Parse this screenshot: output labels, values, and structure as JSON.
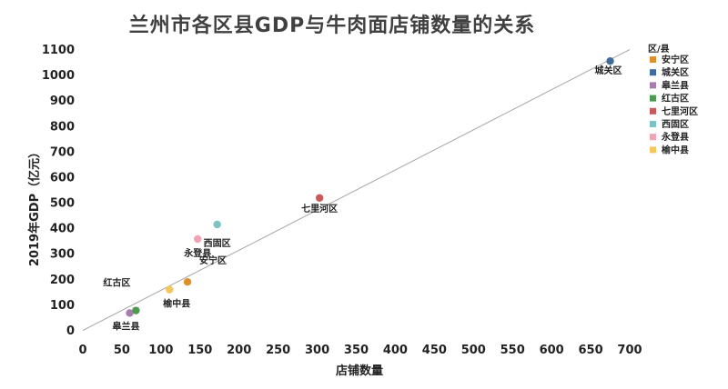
{
  "chart_data": {
    "type": "scatter",
    "title": "兰州市各区县GDP与牛肉面店铺数量的关系",
    "xlabel": "店铺数量",
    "ylabel": "2019年GDP（亿元）",
    "xlim": [
      0,
      700
    ],
    "ylim": [
      0,
      1100
    ],
    "x_ticks": [
      "0",
      "50",
      "100",
      "150",
      "200",
      "250",
      "300",
      "350",
      "400",
      "450",
      "500",
      "550",
      "600",
      "650",
      "700"
    ],
    "y_ticks": [
      "0",
      "100",
      "200",
      "300",
      "400",
      "500",
      "600",
      "700",
      "800",
      "900",
      "1000",
      "1100"
    ],
    "grid": false,
    "legend_title": "区/县",
    "legend_position": "right",
    "trendline": {
      "from": [
        0,
        -2
      ],
      "to": [
        700,
        1098
      ],
      "color": "#a6a6a6"
    },
    "points": [
      {
        "name": "安宁区",
        "x": 134,
        "y": 188,
        "color": "#e0902a"
      },
      {
        "name": "城关区",
        "x": 675,
        "y": 1053,
        "color": "#3f6b9f"
      },
      {
        "name": "皋兰县",
        "x": 60,
        "y": 66,
        "color": "#a97cb0"
      },
      {
        "name": "红古区",
        "x": 68,
        "y": 76,
        "color": "#4e9a4e"
      },
      {
        "name": "七里河区",
        "x": 303,
        "y": 517,
        "color": "#c95a5a"
      },
      {
        "name": "西固区",
        "x": 172,
        "y": 413,
        "color": "#7cc3c3"
      },
      {
        "name": "永登县",
        "x": 147,
        "y": 356,
        "color": "#f2a3b3"
      },
      {
        "name": "榆中县",
        "x": 111,
        "y": 158,
        "color": "#f2c75c"
      }
    ]
  }
}
